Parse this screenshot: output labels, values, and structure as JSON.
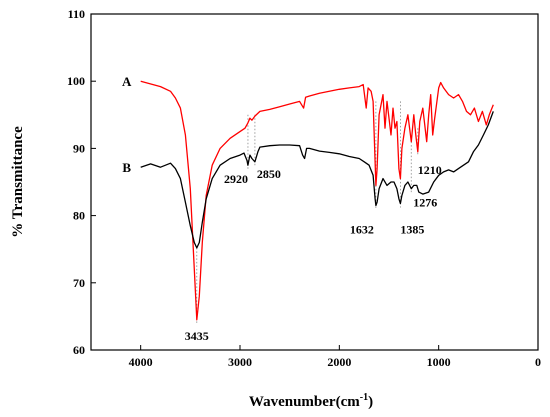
{
  "chart_data": {
    "type": "line",
    "title": "",
    "xlabel": "Wavenumber(cm",
    "xlabel_superscript": "-1",
    "xlabel_suffix": ")",
    "ylabel": "% Transmittance",
    "xlim": [
      4500,
      0
    ],
    "ylim": [
      60,
      110
    ],
    "x_ticks": [
      4000,
      3000,
      2000,
      1000,
      0
    ],
    "y_ticks": [
      60,
      70,
      80,
      90,
      100,
      110
    ],
    "grid": false,
    "legend": "none",
    "series": [
      {
        "name": "A",
        "color": "#ff0000",
        "points": [
          [
            4000,
            100
          ],
          [
            3800,
            99.2
          ],
          [
            3700,
            98.5
          ],
          [
            3650,
            97.5
          ],
          [
            3600,
            96
          ],
          [
            3550,
            92
          ],
          [
            3500,
            84
          ],
          [
            3460,
            72
          ],
          [
            3435,
            64.5
          ],
          [
            3410,
            68
          ],
          [
            3380,
            76
          ],
          [
            3340,
            83
          ],
          [
            3280,
            87.5
          ],
          [
            3200,
            90
          ],
          [
            3100,
            91.5
          ],
          [
            3000,
            92.5
          ],
          [
            2950,
            93
          ],
          [
            2920,
            93.8
          ],
          [
            2900,
            94.5
          ],
          [
            2880,
            94.2
          ],
          [
            2850,
            94.8
          ],
          [
            2800,
            95.5
          ],
          [
            2700,
            95.8
          ],
          [
            2600,
            96.2
          ],
          [
            2500,
            96.6
          ],
          [
            2400,
            97
          ],
          [
            2360,
            96
          ],
          [
            2340,
            97.6
          ],
          [
            2300,
            97.8
          ],
          [
            2200,
            98.2
          ],
          [
            2100,
            98.5
          ],
          [
            2000,
            98.8
          ],
          [
            1900,
            99
          ],
          [
            1800,
            99.2
          ],
          [
            1760,
            99.5
          ],
          [
            1730,
            96
          ],
          [
            1710,
            99
          ],
          [
            1680,
            98.5
          ],
          [
            1660,
            97
          ],
          [
            1640,
            88
          ],
          [
            1632,
            84.5
          ],
          [
            1620,
            87
          ],
          [
            1600,
            95
          ],
          [
            1560,
            98
          ],
          [
            1540,
            93
          ],
          [
            1520,
            97
          ],
          [
            1480,
            92
          ],
          [
            1460,
            96
          ],
          [
            1440,
            93
          ],
          [
            1420,
            94
          ],
          [
            1400,
            87
          ],
          [
            1385,
            85.5
          ],
          [
            1370,
            90
          ],
          [
            1340,
            93
          ],
          [
            1310,
            95
          ],
          [
            1276,
            91
          ],
          [
            1250,
            95
          ],
          [
            1230,
            92
          ],
          [
            1210,
            89.5
          ],
          [
            1190,
            94
          ],
          [
            1160,
            96
          ],
          [
            1120,
            91
          ],
          [
            1100,
            95
          ],
          [
            1080,
            98
          ],
          [
            1060,
            92
          ],
          [
            1040,
            94.5
          ],
          [
            1000,
            99
          ],
          [
            980,
            99.8
          ],
          [
            950,
            99
          ],
          [
            900,
            98
          ],
          [
            850,
            97.5
          ],
          [
            800,
            98
          ],
          [
            760,
            97
          ],
          [
            720,
            95.5
          ],
          [
            680,
            95
          ],
          [
            640,
            96
          ],
          [
            600,
            94
          ],
          [
            560,
            95.5
          ],
          [
            520,
            93.5
          ],
          [
            490,
            95
          ],
          [
            450,
            96.5
          ]
        ]
      },
      {
        "name": "B",
        "color": "#000000",
        "points": [
          [
            4000,
            87.2
          ],
          [
            3900,
            87.7
          ],
          [
            3800,
            87.2
          ],
          [
            3700,
            87.8
          ],
          [
            3650,
            87
          ],
          [
            3600,
            85.5
          ],
          [
            3550,
            82
          ],
          [
            3500,
            78.5
          ],
          [
            3460,
            76
          ],
          [
            3435,
            75.2
          ],
          [
            3410,
            76
          ],
          [
            3380,
            79
          ],
          [
            3340,
            82.5
          ],
          [
            3280,
            85.5
          ],
          [
            3200,
            87.5
          ],
          [
            3100,
            88.5
          ],
          [
            3000,
            89
          ],
          [
            2960,
            89.3
          ],
          [
            2930,
            88.2
          ],
          [
            2920,
            87.5
          ],
          [
            2900,
            89
          ],
          [
            2880,
            88.5
          ],
          [
            2850,
            88
          ],
          [
            2820,
            89.5
          ],
          [
            2800,
            90.2
          ],
          [
            2700,
            90.4
          ],
          [
            2600,
            90.5
          ],
          [
            2500,
            90.5
          ],
          [
            2400,
            90.4
          ],
          [
            2370,
            89
          ],
          [
            2350,
            88.5
          ],
          [
            2330,
            90
          ],
          [
            2300,
            90
          ],
          [
            2200,
            89.6
          ],
          [
            2100,
            89.4
          ],
          [
            2000,
            89.2
          ],
          [
            1900,
            88.8
          ],
          [
            1800,
            88.5
          ],
          [
            1750,
            88
          ],
          [
            1700,
            87.5
          ],
          [
            1660,
            86
          ],
          [
            1640,
            82.5
          ],
          [
            1632,
            81.5
          ],
          [
            1620,
            82
          ],
          [
            1600,
            84
          ],
          [
            1560,
            85.5
          ],
          [
            1520,
            84.5
          ],
          [
            1480,
            85
          ],
          [
            1450,
            85
          ],
          [
            1420,
            84
          ],
          [
            1400,
            82.5
          ],
          [
            1385,
            81.8
          ],
          [
            1370,
            83
          ],
          [
            1340,
            84.5
          ],
          [
            1310,
            85
          ],
          [
            1276,
            84
          ],
          [
            1250,
            84.5
          ],
          [
            1220,
            84.5
          ],
          [
            1200,
            83.5
          ],
          [
            1160,
            83.2
          ],
          [
            1100,
            83.5
          ],
          [
            1050,
            85
          ],
          [
            1000,
            86
          ],
          [
            950,
            86.5
          ],
          [
            900,
            86.8
          ],
          [
            850,
            86.5
          ],
          [
            800,
            87
          ],
          [
            750,
            87.5
          ],
          [
            700,
            88
          ],
          [
            650,
            89.5
          ],
          [
            600,
            90.5
          ],
          [
            550,
            92
          ],
          [
            500,
            93.5
          ],
          [
            450,
            95.5
          ]
        ]
      }
    ],
    "series_labels": [
      {
        "text": "A",
        "x": 4000,
        "y": 100
      },
      {
        "text": "B",
        "x": 4000,
        "y": 87.2
      }
    ],
    "annotations": [
      {
        "text": "3435",
        "x": 3435,
        "y": 64.5
      },
      {
        "text": "2920",
        "x": 2920,
        "y": 87.5
      },
      {
        "text": "2850",
        "x": 2850,
        "y": 88
      },
      {
        "text": "1632",
        "x": 1632,
        "y": 81.5
      },
      {
        "text": "1385",
        "x": 1385,
        "y": 81.8
      },
      {
        "text": "1276",
        "x": 1276,
        "y": 84
      },
      {
        "text": "1210",
        "x": 1210,
        "y": 89.5
      }
    ]
  }
}
